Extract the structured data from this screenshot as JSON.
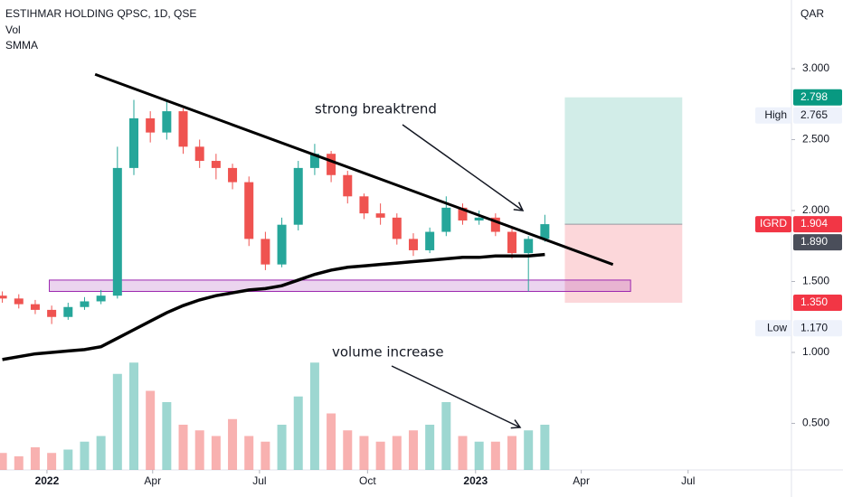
{
  "chart_data": {
    "type": "candlestick",
    "title": "ESTIHMAR HOLDING QPSC, 1D, QSE",
    "indicators": [
      "Vol",
      "SMMA"
    ],
    "currency": "QAR",
    "xlim": [
      -40,
      634
    ],
    "xticks": [
      {
        "value": 0,
        "label": "2022"
      },
      {
        "value": 90,
        "label": "Apr"
      },
      {
        "value": 181,
        "label": "Jul"
      },
      {
        "value": 273,
        "label": "Oct"
      },
      {
        "value": 365,
        "label": "2023"
      },
      {
        "value": 455,
        "label": "Apr"
      },
      {
        "value": 546,
        "label": "Jul"
      }
    ],
    "ylim": [
      0.172,
      3.484
    ],
    "yticks": [
      {
        "value": 0.5,
        "label": "0.500"
      },
      {
        "value": 1,
        "label": "1.000"
      },
      {
        "value": 1.5,
        "label": "1.500"
      },
      {
        "value": 2,
        "label": "2.000"
      },
      {
        "value": 2.5,
        "label": "2.500"
      },
      {
        "value": 3,
        "label": "3.000"
      }
    ],
    "x": [
      -38,
      -24,
      -10,
      4,
      18,
      32,
      46,
      60,
      74,
      88,
      102,
      116,
      130,
      144,
      158,
      172,
      186,
      200,
      214,
      228,
      242,
      256,
      270,
      284,
      298,
      312,
      326,
      340,
      354,
      368,
      382,
      396,
      410,
      424
    ],
    "open": [
      1.4,
      1.38,
      1.34,
      1.3,
      1.25,
      1.32,
      1.36,
      1.4,
      2.3,
      2.65,
      2.55,
      2.7,
      2.45,
      2.35,
      2.3,
      2.2,
      1.8,
      1.62,
      1.9,
      2.3,
      2.4,
      2.25,
      2.1,
      1.98,
      1.95,
      1.8,
      1.72,
      1.85,
      2.02,
      1.93,
      1.95,
      1.85,
      1.7,
      1.8
    ],
    "high": [
      1.43,
      1.41,
      1.37,
      1.33,
      1.35,
      1.39,
      1.44,
      2.45,
      2.78,
      2.7,
      2.78,
      2.72,
      2.5,
      2.4,
      2.33,
      2.24,
      1.85,
      1.95,
      2.35,
      2.47,
      2.42,
      2.28,
      2.12,
      2.05,
      1.98,
      1.84,
      1.88,
      2.1,
      2.05,
      2.0,
      1.98,
      1.88,
      1.82,
      1.97
    ],
    "low": [
      1.35,
      1.31,
      1.27,
      1.2,
      1.23,
      1.3,
      1.34,
      1.38,
      2.25,
      2.48,
      2.5,
      2.4,
      2.3,
      2.22,
      2.15,
      1.75,
      1.58,
      1.6,
      1.86,
      2.25,
      2.2,
      2.05,
      1.94,
      1.9,
      1.76,
      1.68,
      1.7,
      1.82,
      1.9,
      1.9,
      1.82,
      1.66,
      1.43,
      1.78
    ],
    "close": [
      1.38,
      1.34,
      1.3,
      1.25,
      1.32,
      1.36,
      1.4,
      2.3,
      2.65,
      2.55,
      2.7,
      2.45,
      2.35,
      2.3,
      2.2,
      1.8,
      1.62,
      1.9,
      2.3,
      2.4,
      2.25,
      2.1,
      1.98,
      1.95,
      1.8,
      1.72,
      1.85,
      2.02,
      1.93,
      1.95,
      1.85,
      1.7,
      1.8,
      1.904
    ],
    "volume": [
      1.5,
      1.2,
      2.0,
      1.5,
      1.8,
      2.5,
      3.0,
      8.5,
      9.5,
      7.0,
      6.0,
      4.0,
      3.5,
      3.0,
      4.5,
      3.0,
      2.5,
      4.0,
      6.5,
      9.5,
      5.0,
      3.5,
      3.0,
      2.5,
      3.0,
      3.5,
      4.0,
      6.0,
      3.0,
      2.5,
      2.5,
      3.0,
      3.5,
      4.0
    ],
    "volume_lim": [
      0,
      10
    ],
    "smma": [
      0.95,
      0.97,
      0.99,
      1.0,
      1.01,
      1.02,
      1.04,
      1.1,
      1.16,
      1.22,
      1.28,
      1.33,
      1.37,
      1.4,
      1.42,
      1.44,
      1.45,
      1.47,
      1.51,
      1.55,
      1.58,
      1.6,
      1.61,
      1.62,
      1.63,
      1.64,
      1.65,
      1.66,
      1.67,
      1.67,
      1.68,
      1.68,
      1.68,
      1.69
    ],
    "up_color": "#26a69a",
    "down_color": "#ef5350",
    "trendline": {
      "x": [
        41,
        482
      ],
      "y": [
        2.96,
        1.62
      ]
    },
    "support_zone": {
      "x": [
        2,
        497
      ],
      "y": [
        1.43,
        1.51
      ]
    },
    "long_position": {
      "x": [
        441,
        541
      ],
      "target": 2.798,
      "entry": 1.904,
      "stop": 1.35
    },
    "price_badges": [
      {
        "value": 2.798,
        "value_label": "2.798",
        "color": "#089981"
      },
      {
        "name": "High",
        "value": 2.765,
        "value_label": "2.765"
      },
      {
        "name": "IGRD",
        "value": 1.904,
        "value_label": "1.904",
        "color": "#f23645"
      },
      {
        "value": 1.89,
        "value_label": "1.890",
        "color": "#4a4e5a"
      },
      {
        "value": 1.35,
        "value_label": "1.350",
        "color": "#f23645"
      },
      {
        "name": "Low",
        "value": 1.17,
        "value_label": "1.170"
      }
    ],
    "annotations": [
      "strong breaktrend",
      "volume increase"
    ]
  }
}
